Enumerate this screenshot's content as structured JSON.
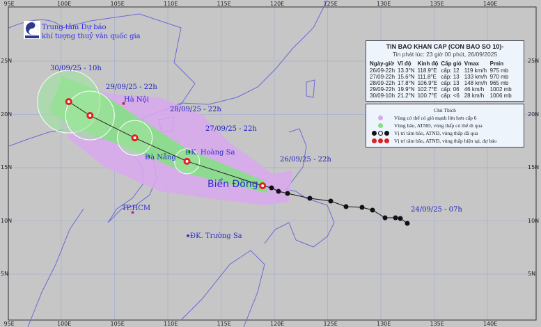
{
  "organization": {
    "line1": "Trung tâm Dự báo",
    "line2": "khí tượng thuỷ văn quốc gia",
    "logo_text": "NCHMF"
  },
  "axes": {
    "lon_ticks": [
      "95E",
      "100E",
      "105E",
      "110E",
      "115E",
      "120E",
      "125E",
      "130E",
      "135E",
      "140E"
    ],
    "lat_ticks": [
      "25N",
      "20N",
      "15N",
      "10N",
      "5N"
    ]
  },
  "bulletin": {
    "title": "TIN BAO KHAN CAP (CON BAO SO 10)-",
    "issued": "Tin phát lúc: 23 giờ 00 phút, 26/09/2025",
    "headers": [
      "Ngày-giờ",
      "Vĩ độ",
      "Kinh độ",
      "Cấp gió",
      "Vmax",
      "Pmin"
    ],
    "rows": [
      [
        "26/09-22h",
        "13.3°N",
        "118.9°E",
        "cấp: 12",
        "119 km/h",
        "975 mb"
      ],
      [
        "27/09-22h",
        "15.6°N",
        "111.8°E",
        "cấp: 13",
        "133 km/h",
        "970 mb"
      ],
      [
        "28/09-22h",
        "17.8°N",
        "106.9°E",
        "cấp: 13",
        "148 km/h",
        "965 mb"
      ],
      [
        "29/09-22h",
        "19.9°N",
        "102.7°E",
        "cấp: 06",
        "46 km/h",
        "1002 mb"
      ],
      [
        "30/09-10h",
        "21.2°N",
        "100.7°E",
        "cấp: <6",
        "28 km/h",
        "1006 mb"
      ]
    ]
  },
  "legend": {
    "title": "Chú Thích",
    "items": [
      {
        "label": "Vùng có thể có gió mạnh lớn hơn cấp 6",
        "color": "#d9a8ef"
      },
      {
        "label": "Vùng bão, ATNĐ, vùng thấp có thể đi qua",
        "color": "#86df86"
      },
      {
        "label": "Vị trí tâm bão, ATNĐ, vùng thấp đã qua",
        "color": "#111111"
      },
      {
        "label": "Vị trí tâm bão, ATNĐ, vùng thấp hiện tại, dự báo",
        "color": "#e02020"
      }
    ]
  },
  "map_labels": {
    "t30": "30/09/25 - 10h",
    "t29": "29/09/25 - 22h",
    "t28": "28/09/25 - 22h",
    "t27": "27/09/25 - 22h",
    "t26": "26/09/25 - 22h",
    "t24": "24/09/25 - 07h",
    "hanoi": "Hà Nội",
    "danang": "Đà Nẵng",
    "hoangsa": "ĐK. Hoàng Sa",
    "hcm": "TP.HCM",
    "truongsa": "ĐK. Trường Sa",
    "biendong": "Biển Đông"
  },
  "forecast_track": [
    [
      21.2,
      100.7
    ],
    [
      19.9,
      102.7
    ],
    [
      17.8,
      106.9
    ],
    [
      15.6,
      111.8
    ],
    [
      13.3,
      118.9
    ]
  ],
  "past_track_color": "#111111",
  "forecast_color": "#e02020"
}
